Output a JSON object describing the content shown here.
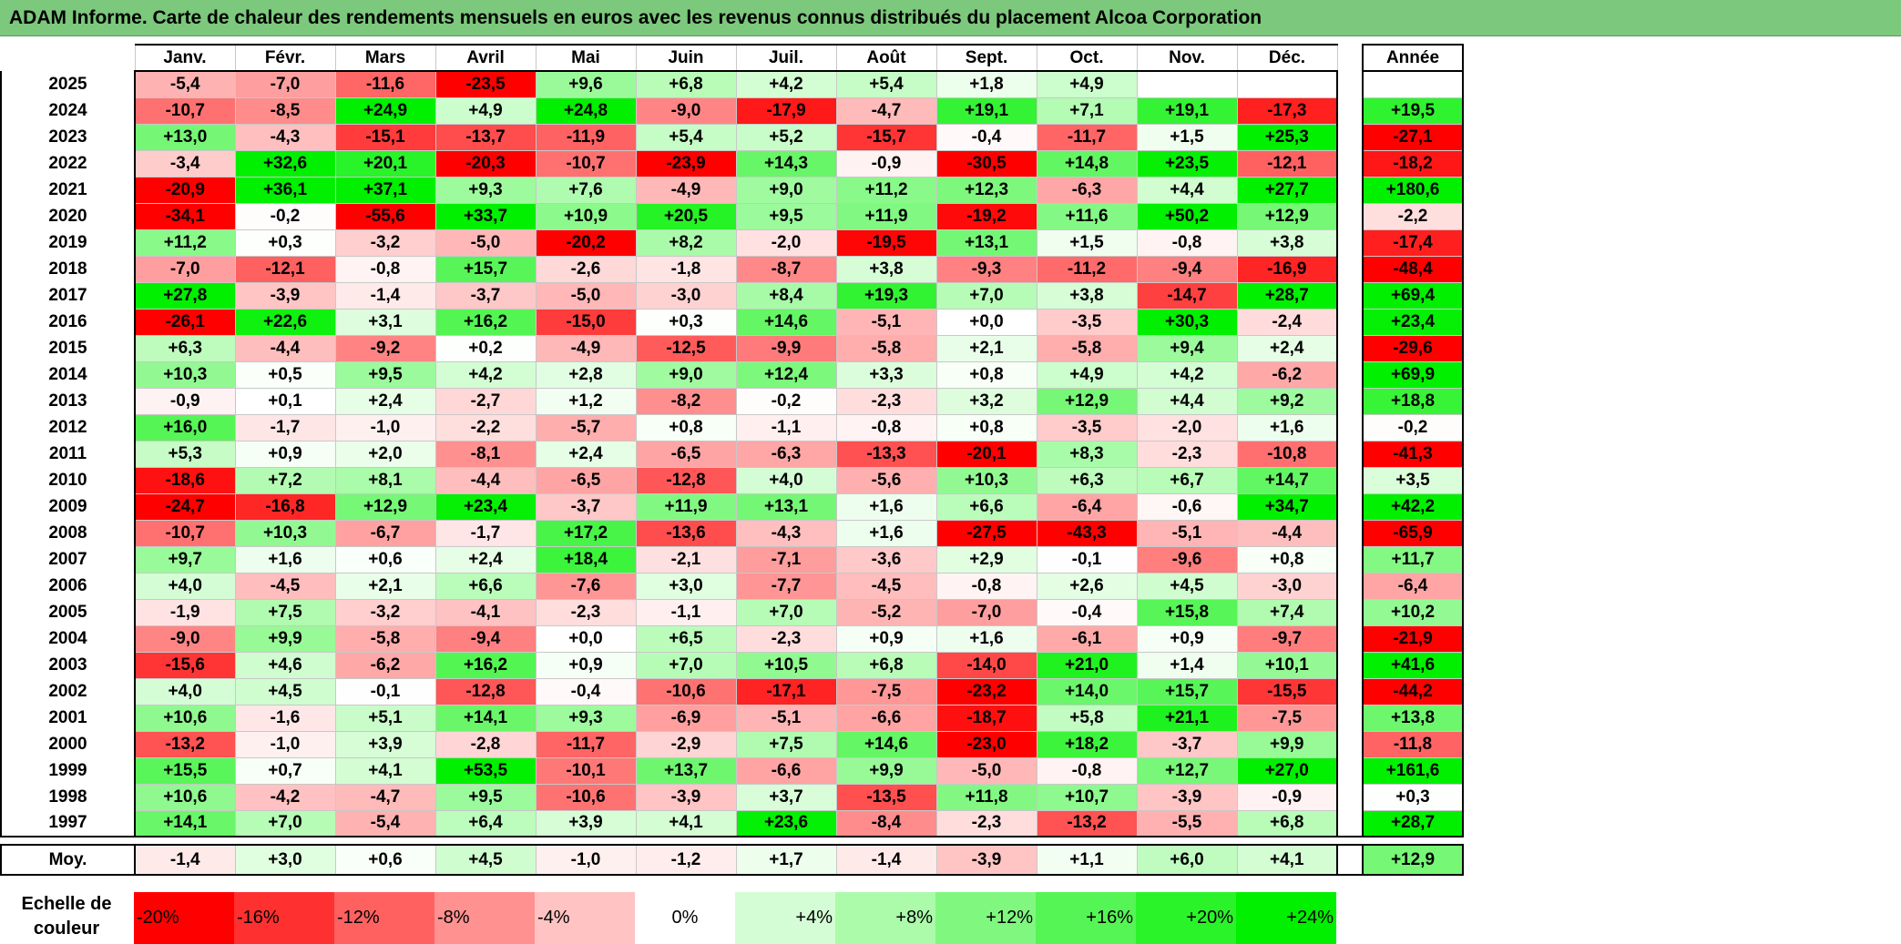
{
  "title": "ADAM Informe. Carte de chaleur des rendements mensuels en euros avec les revenus connus distribués du placement Alcoa Corporation",
  "chart_data": {
    "type": "heatmap",
    "title": "ADAM Informe. Carte de chaleur des rendements mensuels en euros avec les revenus connus distribués du placement Alcoa Corporation",
    "months": [
      "Janv.",
      "Févr.",
      "Mars",
      "Avril",
      "Mai",
      "Juin",
      "Juil.",
      "Août",
      "Sept.",
      "Oct.",
      "Nov.",
      "Déc."
    ],
    "year_header": "Année",
    "rows": [
      {
        "year": "2025",
        "values": [
          "-5,4",
          "-7,0",
          "-11,6",
          "-23,5",
          "+9,6",
          "+6,8",
          "+4,2",
          "+5,4",
          "+1,8",
          "+4,9",
          "",
          ""
        ],
        "annual": ""
      },
      {
        "year": "2024",
        "values": [
          "-10,7",
          "-8,5",
          "+24,9",
          "+4,9",
          "+24,8",
          "-9,0",
          "-17,9",
          "-4,7",
          "+19,1",
          "+7,1",
          "+19,1",
          "-17,3"
        ],
        "annual": "+19,5"
      },
      {
        "year": "2023",
        "values": [
          "+13,0",
          "-4,3",
          "-15,1",
          "-13,7",
          "-11,9",
          "+5,4",
          "+5,2",
          "-15,7",
          "-0,4",
          "-11,7",
          "+1,5",
          "+25,3"
        ],
        "annual": "-27,1"
      },
      {
        "year": "2022",
        "values": [
          "-3,4",
          "+32,6",
          "+20,1",
          "-20,3",
          "-10,7",
          "-23,9",
          "+14,3",
          "-0,9",
          "-30,5",
          "+14,8",
          "+23,5",
          "-12,1"
        ],
        "annual": "-18,2"
      },
      {
        "year": "2021",
        "values": [
          "-20,9",
          "+36,1",
          "+37,1",
          "+9,3",
          "+7,6",
          "-4,9",
          "+9,0",
          "+11,2",
          "+12,3",
          "-6,3",
          "+4,4",
          "+27,7"
        ],
        "annual": "+180,6"
      },
      {
        "year": "2020",
        "values": [
          "-34,1",
          "-0,2",
          "-55,6",
          "+33,7",
          "+10,9",
          "+20,5",
          "+9,5",
          "+11,9",
          "-19,2",
          "+11,6",
          "+50,2",
          "+12,9"
        ],
        "annual": "-2,2"
      },
      {
        "year": "2019",
        "values": [
          "+11,2",
          "+0,3",
          "-3,2",
          "-5,0",
          "-20,2",
          "+8,2",
          "-2,0",
          "-19,5",
          "+13,1",
          "+1,5",
          "-0,8",
          "+3,8"
        ],
        "annual": "-17,4"
      },
      {
        "year": "2018",
        "values": [
          "-7,0",
          "-12,1",
          "-0,8",
          "+15,7",
          "-2,6",
          "-1,8",
          "-8,7",
          "+3,8",
          "-9,3",
          "-11,2",
          "-9,4",
          "-16,9"
        ],
        "annual": "-48,4"
      },
      {
        "year": "2017",
        "values": [
          "+27,8",
          "-3,9",
          "-1,4",
          "-3,7",
          "-5,0",
          "-3,0",
          "+8,4",
          "+19,3",
          "+7,0",
          "+3,8",
          "-14,7",
          "+28,7"
        ],
        "annual": "+69,4"
      },
      {
        "year": "2016",
        "values": [
          "-26,1",
          "+22,6",
          "+3,1",
          "+16,2",
          "-15,0",
          "+0,3",
          "+14,6",
          "-5,1",
          "+0,0",
          "-3,5",
          "+30,3",
          "-2,4"
        ],
        "annual": "+23,4"
      },
      {
        "year": "2015",
        "values": [
          "+6,3",
          "-4,4",
          "-9,2",
          "+0,2",
          "-4,9",
          "-12,5",
          "-9,9",
          "-5,8",
          "+2,1",
          "-5,8",
          "+9,4",
          "+2,4"
        ],
        "annual": "-29,6"
      },
      {
        "year": "2014",
        "values": [
          "+10,3",
          "+0,5",
          "+9,5",
          "+4,2",
          "+2,8",
          "+9,0",
          "+12,4",
          "+3,3",
          "+0,8",
          "+4,9",
          "+4,2",
          "-6,2"
        ],
        "annual": "+69,9"
      },
      {
        "year": "2013",
        "values": [
          "-0,9",
          "+0,1",
          "+2,4",
          "-2,7",
          "+1,2",
          "-8,2",
          "-0,2",
          "-2,3",
          "+3,2",
          "+12,9",
          "+4,4",
          "+9,2"
        ],
        "annual": "+18,8"
      },
      {
        "year": "2012",
        "values": [
          "+16,0",
          "-1,7",
          "-1,0",
          "-2,2",
          "-5,7",
          "+0,8",
          "-1,1",
          "-0,8",
          "+0,8",
          "-3,5",
          "-2,0",
          "+1,6"
        ],
        "annual": "-0,2"
      },
      {
        "year": "2011",
        "values": [
          "+5,3",
          "+0,9",
          "+2,0",
          "-8,1",
          "+2,4",
          "-6,5",
          "-6,3",
          "-13,3",
          "-20,1",
          "+8,3",
          "-2,3",
          "-10,8"
        ],
        "annual": "-41,3"
      },
      {
        "year": "2010",
        "values": [
          "-18,6",
          "+7,2",
          "+8,1",
          "-4,4",
          "-6,5",
          "-12,8",
          "+4,0",
          "-5,6",
          "+10,3",
          "+6,3",
          "+6,7",
          "+14,7"
        ],
        "annual": "+3,5"
      },
      {
        "year": "2009",
        "values": [
          "-24,7",
          "-16,8",
          "+12,9",
          "+23,4",
          "-3,7",
          "+11,9",
          "+13,1",
          "+1,6",
          "+6,6",
          "-6,4",
          "-0,6",
          "+34,7"
        ],
        "annual": "+42,2"
      },
      {
        "year": "2008",
        "values": [
          "-10,7",
          "+10,3",
          "-6,7",
          "-1,7",
          "+17,2",
          "-13,6",
          "-4,3",
          "+1,6",
          "-27,5",
          "-43,3",
          "-5,1",
          "-4,4"
        ],
        "annual": "-65,9"
      },
      {
        "year": "2007",
        "values": [
          "+9,7",
          "+1,6",
          "+0,6",
          "+2,4",
          "+18,4",
          "-2,1",
          "-7,1",
          "-3,6",
          "+2,9",
          "-0,1",
          "-9,6",
          "+0,8"
        ],
        "annual": "+11,7"
      },
      {
        "year": "2006",
        "values": [
          "+4,0",
          "-4,5",
          "+2,1",
          "+6,6",
          "-7,6",
          "+3,0",
          "-7,7",
          "-4,5",
          "-0,8",
          "+2,6",
          "+4,5",
          "-3,0"
        ],
        "annual": "-6,4"
      },
      {
        "year": "2005",
        "values": [
          "-1,9",
          "+7,5",
          "-3,2",
          "-4,1",
          "-2,3",
          "-1,1",
          "+7,0",
          "-5,2",
          "-7,0",
          "-0,4",
          "+15,8",
          "+7,4"
        ],
        "annual": "+10,2"
      },
      {
        "year": "2004",
        "values": [
          "-9,0",
          "+9,9",
          "-5,8",
          "-9,4",
          "+0,0",
          "+6,5",
          "-2,3",
          "+0,9",
          "+1,6",
          "-6,1",
          "+0,9",
          "-9,7"
        ],
        "annual": "-21,9"
      },
      {
        "year": "2003",
        "values": [
          "-15,6",
          "+4,6",
          "-6,2",
          "+16,2",
          "+0,9",
          "+7,0",
          "+10,5",
          "+6,8",
          "-14,0",
          "+21,0",
          "+1,4",
          "+10,1"
        ],
        "annual": "+41,6"
      },
      {
        "year": "2002",
        "values": [
          "+4,0",
          "+4,5",
          "-0,1",
          "-12,8",
          "-0,4",
          "-10,6",
          "-17,1",
          "-7,5",
          "-23,2",
          "+14,0",
          "+15,7",
          "-15,5"
        ],
        "annual": "-44,2"
      },
      {
        "year": "2001",
        "values": [
          "+10,6",
          "-1,6",
          "+5,1",
          "+14,1",
          "+9,3",
          "-6,9",
          "-5,1",
          "-6,6",
          "-18,7",
          "+5,8",
          "+21,1",
          "-7,5"
        ],
        "annual": "+13,8"
      },
      {
        "year": "2000",
        "values": [
          "-13,2",
          "-1,0",
          "+3,9",
          "-2,8",
          "-11,7",
          "-2,9",
          "+7,5",
          "+14,6",
          "-23,0",
          "+18,2",
          "-3,7",
          "+9,9"
        ],
        "annual": "-11,8"
      },
      {
        "year": "1999",
        "values": [
          "+15,5",
          "+0,7",
          "+4,1",
          "+53,5",
          "-10,1",
          "+13,7",
          "-6,6",
          "+9,9",
          "-5,0",
          "-0,8",
          "+12,7",
          "+27,0"
        ],
        "annual": "+161,6"
      },
      {
        "year": "1998",
        "values": [
          "+10,6",
          "-4,2",
          "-4,7",
          "+9,5",
          "-10,6",
          "-3,9",
          "+3,7",
          "-13,5",
          "+11,8",
          "+10,7",
          "-3,9",
          "-0,9"
        ],
        "annual": "+0,3"
      },
      {
        "year": "1997",
        "values": [
          "+14,1",
          "+7,0",
          "-5,4",
          "+6,4",
          "+3,9",
          "+4,1",
          "+23,6",
          "-8,4",
          "-2,3",
          "-13,2",
          "-5,5",
          "+6,8"
        ],
        "annual": "+28,7"
      }
    ],
    "average": {
      "label": "Moy.",
      "values": [
        "-1,4",
        "+3,0",
        "+0,6",
        "+4,5",
        "-1,0",
        "-1,2",
        "+1,7",
        "-1,4",
        "-3,9",
        "+1,1",
        "+6,0",
        "+4,1"
      ],
      "annual": "+12,9"
    },
    "scale": {
      "label": "Echelle de couleur",
      "stops": [
        {
          "text": "-20%",
          "value": -20,
          "color": "#ff0000"
        },
        {
          "text": "-16%",
          "value": -16,
          "color": "#ff3030"
        },
        {
          "text": "-12%",
          "value": -12,
          "color": "#ff6161"
        },
        {
          "text": "-8%",
          "value": -8,
          "color": "#ff9191"
        },
        {
          "text": "-4%",
          "value": -4,
          "color": "#ffc3c3"
        },
        {
          "text": "0%",
          "value": 0,
          "color": "#ffffff"
        },
        {
          "text": "+4%",
          "value": 4,
          "color": "#d5fdd5"
        },
        {
          "text": "+8%",
          "value": 8,
          "color": "#abfbab"
        },
        {
          "text": "+12%",
          "value": 12,
          "color": "#80f880"
        },
        {
          "text": "+16%",
          "value": 16,
          "color": "#55f555"
        },
        {
          "text": "+20%",
          "value": 20,
          "color": "#2af32a"
        },
        {
          "text": "+24%",
          "value": 24,
          "color": "#00f000"
        }
      ]
    }
  }
}
